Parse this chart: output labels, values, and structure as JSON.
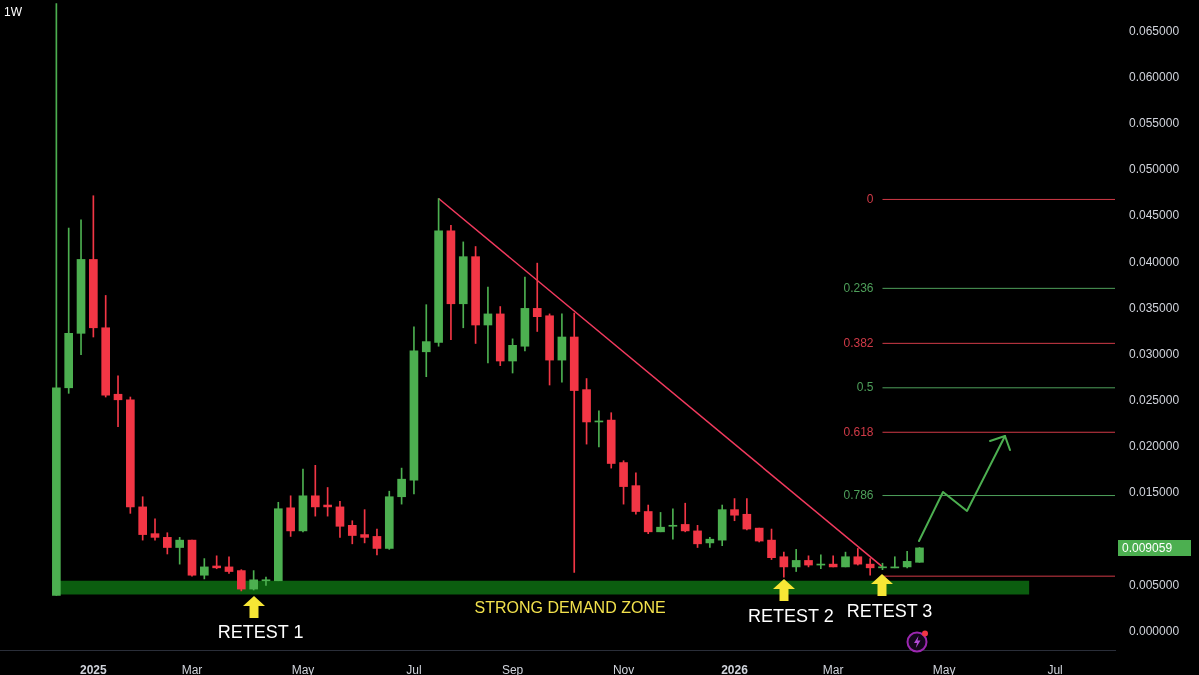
{
  "chart_data": {
    "type": "candlestick",
    "title": "1W",
    "x": [
      "2024-12-16",
      "2024-12-23",
      "2024-12-30",
      "2025-01-06",
      "2025-01-13",
      "2025-01-20",
      "2025-01-27",
      "2025-02-03",
      "2025-02-10",
      "2025-02-17",
      "2025-02-24",
      "2025-03-03",
      "2025-03-10",
      "2025-03-17",
      "2025-03-24",
      "2025-03-31",
      "2025-04-07",
      "2025-04-14",
      "2025-04-21",
      "2025-04-28",
      "2025-05-05",
      "2025-05-12",
      "2025-05-19",
      "2025-05-26",
      "2025-06-02",
      "2025-06-09",
      "2025-06-16",
      "2025-06-23",
      "2025-06-30",
      "2025-07-07",
      "2025-07-14",
      "2025-07-21",
      "2025-07-28",
      "2025-08-04",
      "2025-08-11",
      "2025-08-18",
      "2025-08-25",
      "2025-09-01",
      "2025-09-08",
      "2025-09-15",
      "2025-09-22",
      "2025-09-29",
      "2025-10-06",
      "2025-10-13",
      "2025-10-20",
      "2025-10-27",
      "2025-11-03",
      "2025-11-10",
      "2025-11-17",
      "2025-11-24",
      "2025-12-01",
      "2025-12-08",
      "2025-12-15",
      "2025-12-22",
      "2025-12-29",
      "2026-01-05",
      "2026-01-12",
      "2026-01-19",
      "2026-01-26",
      "2026-02-02",
      "2026-02-09",
      "2026-02-16",
      "2026-02-23",
      "2026-03-02",
      "2026-03-09",
      "2026-03-16",
      "2026-03-23",
      "2026-03-30",
      "2026-04-06",
      "2026-04-13",
      "2026-04-20"
    ],
    "ohlc": [
      [
        0.0039,
        0.068,
        0.0039,
        0.0264
      ],
      [
        0.0264,
        0.0437,
        0.0258,
        0.0323
      ],
      [
        0.0323,
        0.0446,
        0.03,
        0.0403
      ],
      [
        0.0403,
        0.0472,
        0.0319,
        0.0329
      ],
      [
        0.0329,
        0.0364,
        0.0254,
        0.0256
      ],
      [
        0.0257,
        0.0277,
        0.0222,
        0.0251
      ],
      [
        0.0251,
        0.0254,
        0.0128,
        0.0135
      ],
      [
        0.0135,
        0.0146,
        0.0099,
        0.0105
      ],
      [
        0.0106,
        0.0122,
        0.0099,
        0.0102
      ],
      [
        0.0102,
        0.0107,
        0.0084,
        0.0091
      ],
      [
        0.0091,
        0.0102,
        0.0073,
        0.0099
      ],
      [
        0.0099,
        0.0099,
        0.006,
        0.0061
      ],
      [
        0.0061,
        0.0079,
        0.0057,
        0.007
      ],
      [
        0.0071,
        0.0082,
        0.0068,
        0.0069
      ],
      [
        0.007,
        0.0081,
        0.0063,
        0.0065
      ],
      [
        0.0066,
        0.0067,
        0.0044,
        0.0046
      ],
      [
        0.0046,
        0.0066,
        0.0045,
        0.0056
      ],
      [
        0.0055,
        0.0059,
        0.005,
        0.0056
      ],
      [
        0.0055,
        0.014,
        0.0055,
        0.0133
      ],
      [
        0.0134,
        0.0147,
        0.0103,
        0.0109
      ],
      [
        0.0109,
        0.0176,
        0.0108,
        0.0147
      ],
      [
        0.0147,
        0.018,
        0.0125,
        0.0135
      ],
      [
        0.0137,
        0.0156,
        0.0125,
        0.0135
      ],
      [
        0.0135,
        0.0141,
        0.0102,
        0.0114
      ],
      [
        0.0115,
        0.012,
        0.0095,
        0.0104
      ],
      [
        0.0105,
        0.0132,
        0.0096,
        0.0102
      ],
      [
        0.0103,
        0.0111,
        0.0083,
        0.009
      ],
      [
        0.009,
        0.0152,
        0.0089,
        0.0146
      ],
      [
        0.0146,
        0.0177,
        0.0138,
        0.0165
      ],
      [
        0.0164,
        0.033,
        0.0149,
        0.0304
      ],
      [
        0.0303,
        0.0354,
        0.0276,
        0.0314
      ],
      [
        0.0313,
        0.0469,
        0.0309,
        0.0434
      ],
      [
        0.0434,
        0.044,
        0.0316,
        0.0355
      ],
      [
        0.0355,
        0.0422,
        0.0329,
        0.0406
      ],
      [
        0.0406,
        0.0417,
        0.0312,
        0.0332
      ],
      [
        0.0332,
        0.0373,
        0.0291,
        0.0344
      ],
      [
        0.0344,
        0.0352,
        0.0288,
        0.0293
      ],
      [
        0.0293,
        0.0317,
        0.028,
        0.031
      ],
      [
        0.0309,
        0.0384,
        0.0304,
        0.035
      ],
      [
        0.035,
        0.0399,
        0.0325,
        0.0341
      ],
      [
        0.0342,
        0.0344,
        0.0267,
        0.0294
      ],
      [
        0.0294,
        0.0344,
        0.027,
        0.0319
      ],
      [
        0.0319,
        0.0345,
        0.0064,
        0.0261
      ],
      [
        0.0262,
        0.0274,
        0.0203,
        0.0227
      ],
      [
        0.0227,
        0.0239,
        0.02,
        0.0228
      ],
      [
        0.0229,
        0.0237,
        0.0177,
        0.0182
      ],
      [
        0.0183,
        0.0185,
        0.0138,
        0.0157
      ],
      [
        0.0158,
        0.0172,
        0.0127,
        0.013
      ],
      [
        0.013,
        0.0137,
        0.0106,
        0.0108
      ],
      [
        0.0108,
        0.0129,
        0.0108,
        0.0113
      ],
      [
        0.0114,
        0.0133,
        0.01,
        0.0115
      ],
      [
        0.0116,
        0.0139,
        0.0108,
        0.0109
      ],
      [
        0.0109,
        0.0115,
        0.0091,
        0.0095
      ],
      [
        0.0096,
        0.0102,
        0.0091,
        0.01
      ],
      [
        0.0099,
        0.0137,
        0.0093,
        0.0132
      ],
      [
        0.0132,
        0.0144,
        0.012,
        0.0126
      ],
      [
        0.0127,
        0.0144,
        0.011,
        0.0111
      ],
      [
        0.0112,
        0.0112,
        0.0097,
        0.0098
      ],
      [
        0.0099,
        0.0111,
        0.0078,
        0.008
      ],
      [
        0.0081,
        0.0086,
        0.0059,
        0.007
      ],
      [
        0.007,
        0.0089,
        0.0065,
        0.0077
      ],
      [
        0.0077,
        0.0082,
        0.007,
        0.0072
      ],
      [
        0.0072,
        0.0083,
        0.0068,
        0.0073
      ],
      [
        0.0073,
        0.0082,
        0.007,
        0.007
      ],
      [
        0.007,
        0.0086,
        0.007,
        0.0081
      ],
      [
        0.0081,
        0.009,
        0.0072,
        0.0073
      ],
      [
        0.0073,
        0.0079,
        0.0061,
        0.0069
      ],
      [
        0.0069,
        0.0074,
        0.0067,
        0.007
      ],
      [
        0.007,
        0.0081,
        0.0069,
        0.007
      ],
      [
        0.007,
        0.0087,
        0.0069,
        0.0076
      ],
      [
        0.0075,
        0.0091,
        0.0075,
        0.009059
      ]
    ],
    "colors": [
      "#4caf50",
      "#4caf50",
      "#4caf50",
      "#f23645",
      "#f23645",
      "#f23645",
      "#f23645",
      "#f23645",
      "#f23645",
      "#f23645",
      "#4caf50",
      "#f23645",
      "#4caf50",
      "#f23645",
      "#f23645",
      "#f23645",
      "#4caf50",
      "#4caf50",
      "#4caf50",
      "#f23645",
      "#4caf50",
      "#f23645",
      "#f23645",
      "#f23645",
      "#f23645",
      "#f23645",
      "#f23645",
      "#4caf50",
      "#4caf50",
      "#4caf50",
      "#4caf50",
      "#4caf50",
      "#f23645",
      "#4caf50",
      "#f23645",
      "#4caf50",
      "#f23645",
      "#4caf50",
      "#4caf50",
      "#f23645",
      "#f23645",
      "#4caf50",
      "#f23645",
      "#f23645",
      "#4caf50",
      "#f23645",
      "#f23645",
      "#f23645",
      "#f23645",
      "#4caf50",
      "#4caf50",
      "#f23645",
      "#f23645",
      "#4caf50",
      "#4caf50",
      "#f23645",
      "#f23645",
      "#f23645",
      "#f23645",
      "#f23645",
      "#4caf50",
      "#f23645",
      "#4caf50",
      "#f23645",
      "#4caf50",
      "#f23645",
      "#f23645",
      "#4caf50",
      "#4caf50",
      "#4caf50",
      "#4caf50"
    ],
    "series": [
      {
        "type": "line",
        "x": [
          "2025-07-21",
          "2026-03-30"
        ],
        "values": [
          0.0469,
          0.007
        ],
        "color": "#f23a5e"
      }
    ],
    "xlim": [
      "2024-11-14",
      "2026-08-09"
    ],
    "xticks": [
      {
        "value": "2025-01-06",
        "label": "2025"
      },
      {
        "value": "2025-03-03",
        "label": "Mar"
      },
      {
        "value": "2025-05-05",
        "label": "May"
      },
      {
        "value": "2025-07-07",
        "label": "Jul"
      },
      {
        "value": "2025-09-01",
        "label": "Sep"
      },
      {
        "value": "2025-11-03",
        "label": "Nov"
      },
      {
        "value": "2026-01-05",
        "label": "2026"
      },
      {
        "value": "2026-03-02",
        "label": "Mar"
      },
      {
        "value": "2026-05-04",
        "label": "May"
      },
      {
        "value": "2026-07-06",
        "label": "Jul"
      }
    ],
    "ylim": [
      -0.002,
      0.0684
    ],
    "yticks": [
      {
        "value": 0,
        "label": "0.000000"
      },
      {
        "value": 0.005,
        "label": "0.005000"
      },
      {
        "value": 0.015,
        "label": "0.015000"
      },
      {
        "value": 0.02,
        "label": "0.020000"
      },
      {
        "value": 0.025,
        "label": "0.025000"
      },
      {
        "value": 0.03,
        "label": "0.030000"
      },
      {
        "value": 0.035,
        "label": "0.035000"
      },
      {
        "value": 0.04,
        "label": "0.040000"
      },
      {
        "value": 0.045,
        "label": "0.045000"
      },
      {
        "value": 0.05,
        "label": "0.050000"
      },
      {
        "value": 0.055,
        "label": "0.055000"
      },
      {
        "value": 0.06,
        "label": "0.060000"
      },
      {
        "value": 0.065,
        "label": "0.065000"
      }
    ],
    "y2lim": [
      1.196,
      -0.5294
    ],
    "ref_lines": [
      {
        "axis": "y2",
        "value": 0,
        "label": "0",
        "color": "#d03a47"
      },
      {
        "axis": "y2",
        "value": 0.236,
        "label": "0.236",
        "color": "#4e9f5a"
      },
      {
        "axis": "y2",
        "value": 0.382,
        "label": "0.382",
        "color": "#d03a47"
      },
      {
        "axis": "y2",
        "value": 0.5,
        "label": "0.5",
        "color": "#4e9f5a"
      },
      {
        "axis": "y2",
        "value": 0.618,
        "label": "0.618",
        "color": "#d03a47"
      },
      {
        "axis": "y2",
        "value": 0.786,
        "label": "0.786",
        "color": "#4e9f5a"
      },
      {
        "axis": "y2",
        "value": 1,
        "color": "#d03a47"
      }
    ],
    "bands": [
      {
        "axis": "y",
        "from": 0.004,
        "to": 0.0055,
        "label": "STRONG DEMAND ZONE",
        "color": "#0b5d0f"
      }
    ],
    "annotations": [
      {
        "text": "RETEST 1",
        "x": "2025-04-07",
        "y": 0.0039
      },
      {
        "text": "RETEST 2",
        "x": "2026-02-02",
        "y": 0.0057
      },
      {
        "text": "RETEST 3",
        "x": "2026-03-30",
        "y": 0.0062
      },
      "0.009059"
    ]
  }
}
